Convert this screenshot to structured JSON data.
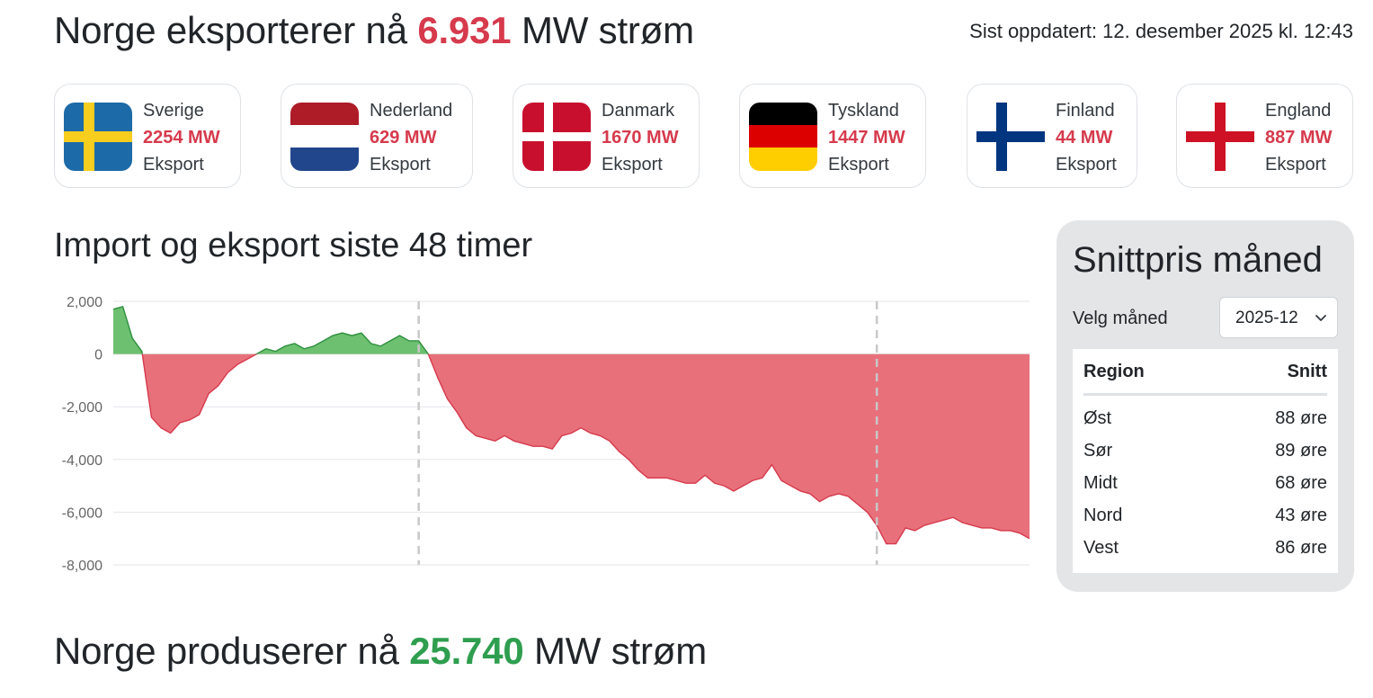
{
  "export_headline": {
    "prefix": "Norge eksporterer nå",
    "value": "6.931",
    "suffix": "MW strøm"
  },
  "updated": "Sist oppdatert: 12. desember 2025 kl. 12:43",
  "countries": [
    {
      "name": "Sverige",
      "value": "2254 MW",
      "type": "Eksport",
      "flag": "sweden-flag-icon"
    },
    {
      "name": "Nederland",
      "value": "629 MW",
      "type": "Eksport",
      "flag": "netherlands-flag-icon"
    },
    {
      "name": "Danmark",
      "value": "1670 MW",
      "type": "Eksport",
      "flag": "denmark-flag-icon"
    },
    {
      "name": "Tyskland",
      "value": "1447 MW",
      "type": "Eksport",
      "flag": "germany-flag-icon"
    },
    {
      "name": "Finland",
      "value": "44 MW",
      "type": "Eksport",
      "flag": "finland-flag-icon"
    },
    {
      "name": "England",
      "value": "887 MW",
      "type": "Eksport",
      "flag": "england-flag-icon"
    }
  ],
  "chart_section": {
    "title": "Import og eksport siste 48 timer"
  },
  "chart_data": {
    "type": "area",
    "title": "Import og eksport siste 48 timer",
    "xlabel": "",
    "ylabel": "",
    "ylim": [
      -8000,
      2000
    ],
    "yticks": [
      "2,000",
      "0",
      "-2,000",
      "-4,000",
      "-6,000",
      "-8,000"
    ],
    "grid": true,
    "positive_color": "#4caf50",
    "negative_color": "#e8707b",
    "day_dividers_at_hour": [
      16,
      40
    ],
    "x_hours": [
      0,
      0.5,
      1,
      1.5,
      2,
      2.5,
      3,
      3.5,
      4,
      4.5,
      5,
      5.5,
      6,
      6.5,
      7,
      7.5,
      8,
      8.5,
      9,
      9.5,
      10,
      10.5,
      11,
      11.5,
      12,
      12.5,
      13,
      13.5,
      14,
      14.5,
      15,
      15.5,
      16,
      16.5,
      17,
      17.5,
      18,
      18.5,
      19,
      19.5,
      20,
      20.5,
      21,
      21.5,
      22,
      22.5,
      23,
      23.5,
      24,
      24.5,
      25,
      25.5,
      26,
      26.5,
      27,
      27.5,
      28,
      28.5,
      29,
      29.5,
      30,
      30.5,
      31,
      31.5,
      32,
      32.5,
      33,
      33.5,
      34,
      34.5,
      35,
      35.5,
      36,
      36.5,
      37,
      37.5,
      38,
      38.5,
      39,
      39.5,
      40,
      40.5,
      41,
      41.5,
      42,
      42.5,
      43,
      43.5,
      44,
      44.5,
      45,
      45.5,
      46,
      46.5,
      47,
      47.5,
      48
    ],
    "values": [
      1700,
      1800,
      600,
      100,
      -2400,
      -2800,
      -3000,
      -2600,
      -2500,
      -2300,
      -1500,
      -1200,
      -700,
      -400,
      -200,
      0,
      200,
      100,
      300,
      400,
      200,
      300,
      500,
      700,
      800,
      700,
      800,
      400,
      300,
      500,
      700,
      500,
      500,
      0,
      -900,
      -1700,
      -2200,
      -2800,
      -3100,
      -3200,
      -3300,
      -3100,
      -3300,
      -3400,
      -3500,
      -3500,
      -3600,
      -3100,
      -3000,
      -2800,
      -3000,
      -3100,
      -3300,
      -3700,
      -4000,
      -4400,
      -4700,
      -4700,
      -4700,
      -4800,
      -4900,
      -4900,
      -4600,
      -4900,
      -5000,
      -5200,
      -5000,
      -4800,
      -4700,
      -4200,
      -4800,
      -5000,
      -5200,
      -5300,
      -5600,
      -5400,
      -5300,
      -5400,
      -5700,
      -6000,
      -6500,
      -7200,
      -7200,
      -6600,
      -6700,
      -6500,
      -6400,
      -6300,
      -6200,
      -6400,
      -6500,
      -6600,
      -6600,
      -6700,
      -6700,
      -6800,
      -7000
    ]
  },
  "side_card": {
    "title": "Snittpris måned",
    "month_label": "Velg måned",
    "selected_month": "2025-12",
    "table_header": {
      "region": "Region",
      "avg": "Snitt"
    },
    "rows": [
      {
        "region": "Øst",
        "avg": "88 øre"
      },
      {
        "region": "Sør",
        "avg": "89 øre"
      },
      {
        "region": "Midt",
        "avg": "68 øre"
      },
      {
        "region": "Nord",
        "avg": "43 øre"
      },
      {
        "region": "Vest",
        "avg": "86 øre"
      }
    ]
  },
  "production_headline": {
    "prefix": "Norge produserer nå",
    "value": "25.740",
    "suffix": "MW strøm"
  }
}
